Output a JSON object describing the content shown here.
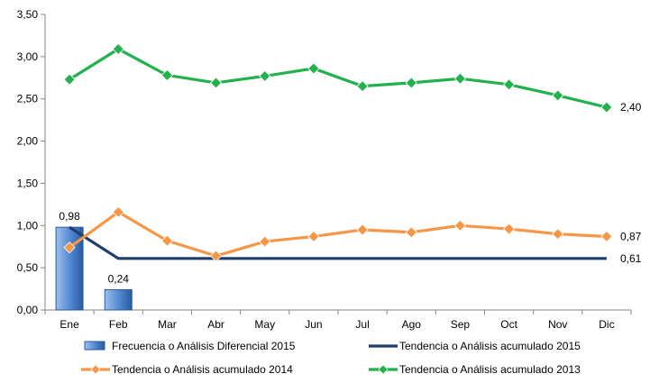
{
  "chart_data": {
    "type": "bar",
    "categories": [
      "Ene",
      "Feb",
      "Mar",
      "Abr",
      "May",
      "Jun",
      "Jul",
      "Ago",
      "Sep",
      "Oct",
      "Nov",
      "Dic"
    ],
    "ylim": [
      0,
      3.5
    ],
    "yticks": [
      "0,00",
      "0,50",
      "1,00",
      "1,50",
      "2,00",
      "2,50",
      "3,00",
      "3,50"
    ],
    "ytick_values": [
      0,
      0.5,
      1.0,
      1.5,
      2.0,
      2.5,
      3.0,
      3.5
    ],
    "grid": false,
    "legend_position": "bottom",
    "series": [
      {
        "name": "Frecuencia o Análisis Diferencial 2015",
        "type": "bar",
        "color": "#3f78c8",
        "values": [
          0.98,
          0.24,
          null,
          null,
          null,
          null,
          null,
          null,
          null,
          null,
          null,
          null
        ],
        "labels": [
          "0,98",
          "0,24"
        ]
      },
      {
        "name": "Tendencia o Análisis acumulado 2015",
        "type": "line",
        "marker": "none",
        "color": "#1f3d6e",
        "values": [
          0.98,
          0.61,
          0.61,
          0.61,
          0.61,
          0.61,
          0.61,
          0.61,
          0.61,
          0.61,
          0.61,
          0.61
        ],
        "end_label": "0,61"
      },
      {
        "name": "Tendencia o Análisis acumulado 2014",
        "type": "line",
        "marker": "diamond",
        "color": "#f79646",
        "values": [
          0.74,
          1.16,
          0.82,
          0.64,
          0.81,
          0.87,
          0.95,
          0.92,
          1.0,
          0.96,
          0.9,
          0.87
        ],
        "end_label": "0,87"
      },
      {
        "name": "Tendencia o Análisis acumulado 2013",
        "type": "line",
        "marker": "diamond",
        "color": "#22b14c",
        "values": [
          2.73,
          3.09,
          2.78,
          2.69,
          2.77,
          2.86,
          2.65,
          2.69,
          2.74,
          2.67,
          2.54,
          2.4
        ],
        "end_label": "2,40"
      }
    ]
  }
}
